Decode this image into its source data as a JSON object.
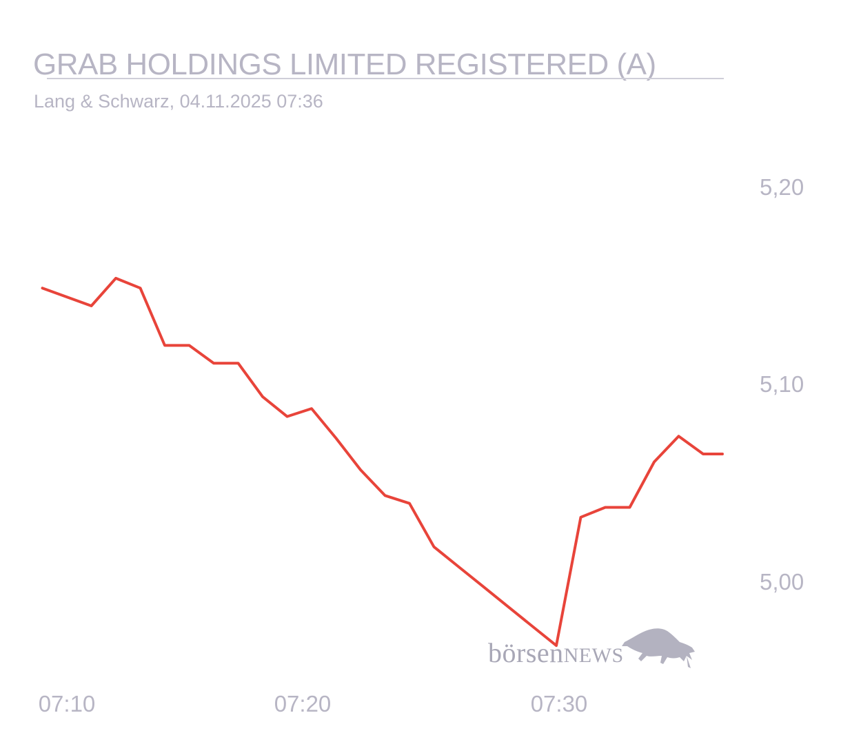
{
  "header": {
    "title": "GRAB HOLDINGS LIMITED REGISTERED (A)",
    "subtitle": "Lang & Schwarz, 04.11.2025 07:36"
  },
  "watermark": {
    "brand_prefix": "börsen",
    "brand_suffix": "NEWS"
  },
  "colors": {
    "line": "#e8443a",
    "text": "#b7b5c4"
  },
  "chart_data": {
    "type": "line",
    "title": "GRAB HOLDINGS LIMITED REGISTERED (A)",
    "subtitle": "Lang & Schwarz, 04.11.2025 07:36",
    "xlabel": "",
    "ylabel": "",
    "x_tick_labels": [
      "07:10",
      "07:20",
      "07:30"
    ],
    "y_tick_labels": [
      "5,20",
      "5,10",
      "5,00"
    ],
    "y_ticks": [
      5.2,
      5.1,
      5.0
    ],
    "ylim": [
      4.94,
      5.24
    ],
    "xlim": [
      "07:09",
      "07:36"
    ],
    "grid": false,
    "legend": "none",
    "series": [
      {
        "x": [
          "07:09",
          "07:11",
          "07:12",
          "07:13",
          "07:14",
          "07:15",
          "07:16",
          "07:17",
          "07:18",
          "07:19",
          "07:20",
          "07:21",
          "07:22",
          "07:23",
          "07:24",
          "07:25",
          "07:26",
          "07:27",
          "07:28",
          "07:29",
          "07:30",
          "07:31",
          "07:32",
          "07:33",
          "07:34",
          "07:35",
          "07:36",
          "07:36"
        ],
        "y": [
          5.149,
          5.14,
          5.154,
          5.149,
          5.12,
          5.12,
          5.111,
          5.111,
          5.094,
          5.084,
          5.088,
          5.073,
          5.057,
          5.044,
          5.04,
          5.018,
          5.008,
          4.998,
          4.988,
          4.978,
          4.968,
          5.033,
          5.038,
          5.038,
          5.061,
          5.074,
          5.065,
          5.065
        ]
      }
    ]
  }
}
